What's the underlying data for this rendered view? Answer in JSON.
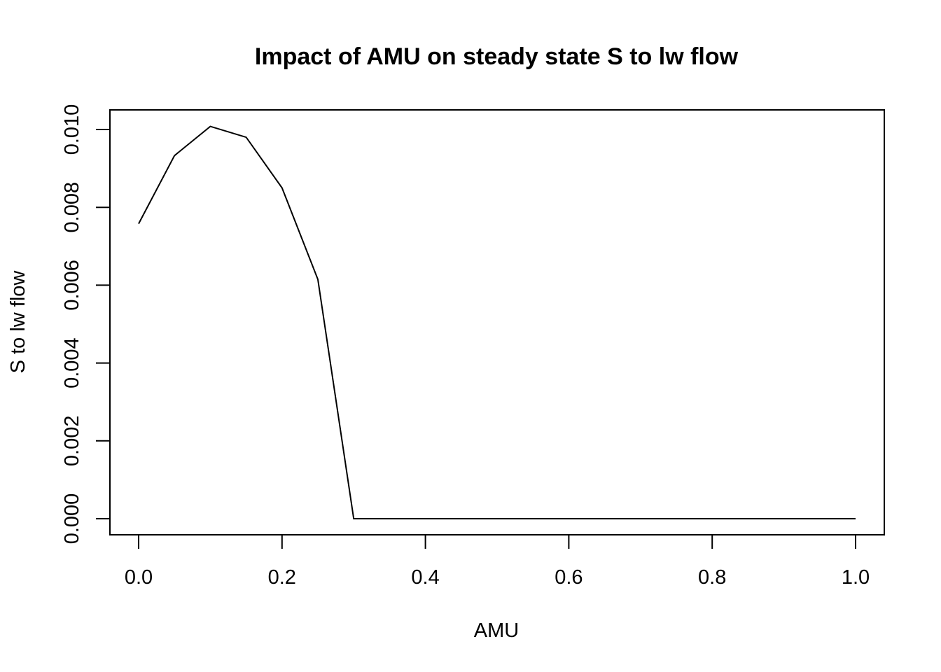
{
  "chart_data": {
    "type": "line",
    "title": "Impact of AMU on steady state S to lw flow",
    "xlabel": "AMU",
    "ylabel": "S to lw flow",
    "xlim": [
      0.0,
      1.0
    ],
    "ylim": [
      0.0,
      0.01
    ],
    "x_ticks": [
      "0.0",
      "0.2",
      "0.4",
      "0.6",
      "0.8",
      "1.0"
    ],
    "y_ticks": [
      "0.000",
      "0.002",
      "0.004",
      "0.006",
      "0.008",
      "0.010"
    ],
    "grid": false,
    "legend": "none",
    "line_color": "#000000",
    "series": [
      {
        "x": [
          0.0,
          0.05,
          0.1,
          0.15,
          0.2,
          0.25,
          0.3,
          0.35,
          0.4,
          0.45,
          0.5,
          0.55,
          0.6,
          0.65,
          0.7,
          0.75,
          0.8,
          0.85,
          0.9,
          0.95,
          1.0
        ],
        "y": [
          0.00758,
          0.00933,
          0.01008,
          0.0098,
          0.0085,
          0.00615,
          0.0,
          0.0,
          0.0,
          0.0,
          0.0,
          0.0,
          0.0,
          0.0,
          0.0,
          0.0,
          0.0,
          0.0,
          0.0,
          0.0,
          0.0
        ]
      }
    ]
  }
}
